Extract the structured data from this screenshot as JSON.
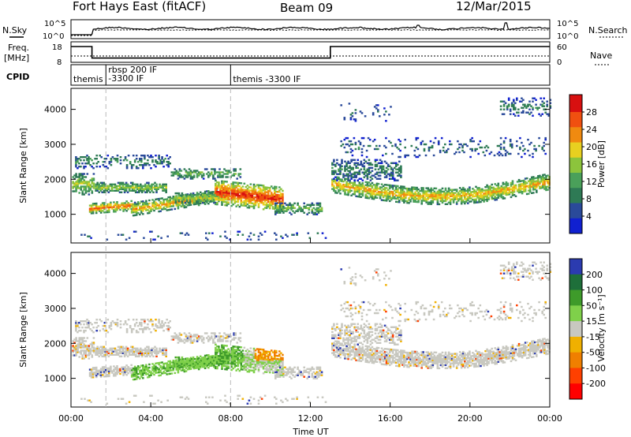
{
  "header": {
    "station": "Fort Hays East (fitACF)",
    "beam": "Beam 09",
    "date": "12/Mar/2015"
  },
  "summary_panels": {
    "nsky_label": "N.Sky",
    "nsearch_label": "N.Search",
    "freq_label_line1": "Freq.",
    "freq_label_line2": "[MHz]",
    "nave_label": "Nave",
    "cpid_label": "CPID",
    "noise_ticks_left": [
      "10^5",
      "10^0"
    ],
    "noise_ticks_right": [
      "10^5",
      "10^0"
    ],
    "freq_ticks_left": [
      "18",
      "8"
    ],
    "freq_ticks_right": [
      "60",
      "0"
    ],
    "cpid_segments": [
      {
        "start_hour": 0.0,
        "lines": [
          "themis"
        ]
      },
      {
        "start_hour": 1.75,
        "lines": [
          "rbsp 200 IF",
          "-3300 IF"
        ]
      },
      {
        "start_hour": 8.0,
        "lines": [
          "themis -3300 IF"
        ]
      }
    ],
    "freq_series": {
      "hours": [
        0,
        1.05,
        1.05,
        13.0,
        13.0,
        24
      ],
      "mhz": [
        17.5,
        17.5,
        10.2,
        10.2,
        17.5,
        17.5
      ]
    }
  },
  "chart_data": [
    {
      "type": "heatmap",
      "name": "power",
      "xlabel": "",
      "ylabel": "Slant Range [km]",
      "xlim": [
        0,
        24
      ],
      "ylim": [
        180,
        4600
      ],
      "yticks": [
        1000,
        2000,
        3000,
        4000
      ],
      "colorbar_label": "Power [dB]",
      "colorbar_ticks": [
        "28",
        "24",
        "20",
        "16",
        "12",
        "8",
        "4"
      ],
      "colorbar_range": [
        0,
        32
      ],
      "grid": false
    },
    {
      "type": "heatmap",
      "name": "velocity",
      "xlabel": "Time UT",
      "ylabel": "Slant Range [km]",
      "xlim": [
        0,
        24
      ],
      "ylim": [
        180,
        4600
      ],
      "yticks": [
        1000,
        2000,
        3000,
        4000
      ],
      "xtick_labels": [
        "00:00",
        "04:00",
        "08:00",
        "12:00",
        "16:00",
        "20:00",
        "00:00"
      ],
      "colorbar_label": "Velocity [m s⁻¹]",
      "colorbar_ticks": [
        "200",
        "100",
        "50",
        "15",
        "-15",
        "-50",
        "-100",
        "-200"
      ],
      "colorbar_colors": [
        "#2b3bb0",
        "#1e6f3a",
        "#3e9b2a",
        "#7fd04a",
        "#c8c8c0",
        "#f0b000",
        "#f07f00",
        "#ff4000",
        "#ff0000"
      ],
      "grid": false
    }
  ],
  "colors": {
    "power_scale": [
      "#1020d0",
      "#2a4a9a",
      "#2e7a55",
      "#4aa05a",
      "#8cc43c",
      "#e8d020",
      "#f08a10",
      "#f05010",
      "#d81010"
    ],
    "dashed_marker": "#bbbbbb"
  }
}
